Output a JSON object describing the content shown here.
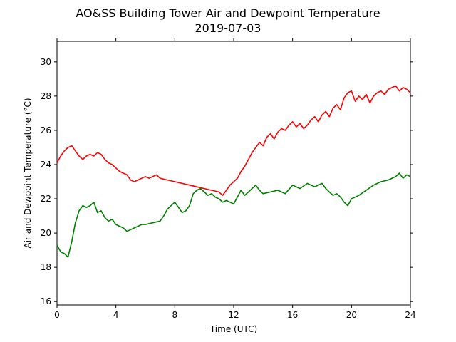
{
  "chart_data": {
    "type": "line",
    "title": "AO&SS Building Tower Air and Dewpoint Temperature",
    "subtitle": "2019-07-03",
    "xlabel": "Time (UTC)",
    "ylabel": "Air and Dewpoint Temperature (°C)",
    "xlim": [
      0,
      24
    ],
    "ylim": [
      15.8,
      31.2
    ],
    "xticks": [
      0,
      4,
      8,
      12,
      16,
      20,
      24
    ],
    "yticks": [
      16,
      18,
      20,
      22,
      24,
      26,
      28,
      30
    ],
    "grid": false,
    "legend": "none",
    "series": [
      {
        "color": "#ff0000",
        "x": [
          0,
          0.25,
          0.5,
          0.75,
          1.0,
          1.25,
          1.5,
          1.75,
          2.0,
          2.25,
          2.5,
          2.75,
          3.0,
          3.25,
          3.5,
          3.75,
          4.0,
          4.25,
          4.5,
          4.75,
          5.0,
          5.25,
          5.5,
          5.75,
          6.0,
          6.25,
          6.5,
          6.75,
          7.0,
          7.5,
          8.0,
          8.5,
          9.0,
          9.5,
          10.0,
          10.5,
          11.0,
          11.25,
          11.5,
          11.75,
          12.0,
          12.25,
          12.5,
          12.75,
          13.0,
          13.25,
          13.5,
          13.75,
          14.0,
          14.25,
          14.5,
          14.75,
          15.0,
          15.25,
          15.5,
          15.75,
          16.0,
          16.25,
          16.5,
          16.75,
          17.0,
          17.25,
          17.5,
          17.75,
          18.0,
          18.25,
          18.5,
          18.75,
          19.0,
          19.25,
          19.5,
          19.75,
          20.0,
          20.25,
          20.5,
          20.75,
          21.0,
          21.25,
          21.5,
          21.75,
          22.0,
          22.25,
          22.5,
          22.75,
          23.0,
          23.25,
          23.5,
          23.75,
          24.0
        ],
        "y": [
          24.1,
          24.5,
          24.8,
          25.0,
          25.1,
          24.8,
          24.5,
          24.3,
          24.5,
          24.6,
          24.5,
          24.7,
          24.6,
          24.3,
          24.1,
          24.0,
          23.8,
          23.6,
          23.5,
          23.4,
          23.1,
          23.0,
          23.1,
          23.2,
          23.3,
          23.2,
          23.3,
          23.4,
          23.2,
          23.1,
          23.0,
          22.9,
          22.8,
          22.7,
          22.6,
          22.5,
          22.4,
          22.2,
          22.5,
          22.8,
          23.0,
          23.2,
          23.6,
          23.9,
          24.3,
          24.7,
          25.0,
          25.3,
          25.1,
          25.6,
          25.8,
          25.5,
          25.9,
          26.1,
          26.0,
          26.3,
          26.5,
          26.2,
          26.4,
          26.1,
          26.3,
          26.6,
          26.8,
          26.5,
          26.9,
          27.1,
          26.8,
          27.3,
          27.5,
          27.2,
          27.9,
          28.2,
          28.3,
          27.7,
          28.0,
          27.8,
          28.1,
          27.6,
          28.0,
          28.2,
          28.3,
          28.1,
          28.4,
          28.5,
          28.6,
          28.3,
          28.5,
          28.4,
          28.2
        ]
      },
      {
        "color": "#008000",
        "x": [
          0,
          0.25,
          0.5,
          0.75,
          1.0,
          1.25,
          1.5,
          1.75,
          2.0,
          2.25,
          2.5,
          2.75,
          3.0,
          3.25,
          3.5,
          3.75,
          4.0,
          4.25,
          4.5,
          4.75,
          5.0,
          5.25,
          5.5,
          5.75,
          6.0,
          6.5,
          7.0,
          7.25,
          7.5,
          7.75,
          8.0,
          8.25,
          8.5,
          8.75,
          9.0,
          9.25,
          9.5,
          9.75,
          10.0,
          10.25,
          10.5,
          10.75,
          11.0,
          11.25,
          11.5,
          11.75,
          12.0,
          12.25,
          12.5,
          12.75,
          13.0,
          13.25,
          13.5,
          13.75,
          14.0,
          14.5,
          15.0,
          15.5,
          16.0,
          16.5,
          17.0,
          17.5,
          18.0,
          18.25,
          18.5,
          18.75,
          19.0,
          19.25,
          19.5,
          19.75,
          20.0,
          20.5,
          21.0,
          21.5,
          22.0,
          22.5,
          23.0,
          23.25,
          23.5,
          23.75,
          24.0
        ],
        "y": [
          19.3,
          18.9,
          18.8,
          18.6,
          19.5,
          20.6,
          21.3,
          21.6,
          21.5,
          21.6,
          21.8,
          21.2,
          21.3,
          20.9,
          20.7,
          20.8,
          20.5,
          20.4,
          20.3,
          20.1,
          20.2,
          20.3,
          20.4,
          20.5,
          20.5,
          20.6,
          20.7,
          21.0,
          21.4,
          21.6,
          21.8,
          21.5,
          21.2,
          21.3,
          21.6,
          22.3,
          22.5,
          22.6,
          22.4,
          22.2,
          22.3,
          22.1,
          22.0,
          21.8,
          21.9,
          21.8,
          21.7,
          22.1,
          22.5,
          22.2,
          22.4,
          22.6,
          22.8,
          22.5,
          22.3,
          22.4,
          22.5,
          22.3,
          22.8,
          22.6,
          22.9,
          22.7,
          22.9,
          22.6,
          22.4,
          22.2,
          22.3,
          22.1,
          21.8,
          21.6,
          22.0,
          22.2,
          22.5,
          22.8,
          23.0,
          23.1,
          23.3,
          23.5,
          23.2,
          23.4,
          23.3
        ]
      }
    ]
  }
}
